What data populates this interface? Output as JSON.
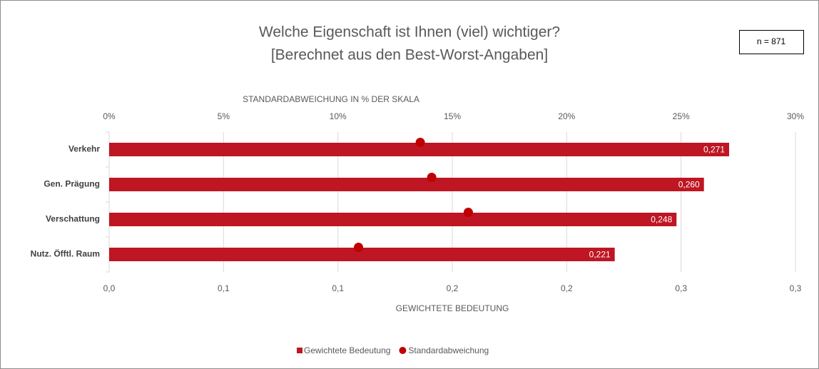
{
  "chart_data": {
    "type": "bar",
    "orientation": "horizontal",
    "title": "Welche Eigenschaft ist Ihnen (viel) wichtiger?",
    "subtitle": "[Berechnet aus den Best-Worst-Angaben]",
    "annotation": "n = 871",
    "xlabel": "GEWICHTETE BEDEUTUNG",
    "x2label": "STANDARDABWEICHUNG IN % DER SKALA",
    "categories": [
      "Verkehr",
      "Gen. Prägung",
      "Verschattung",
      "Nutz. Öfftl. Raum"
    ],
    "series": [
      {
        "name": "Gewichtete Bedeutung",
        "type": "bar",
        "color": "#be1622",
        "values": [
          0.271,
          0.26,
          0.248,
          0.221
        ],
        "value_labels": [
          "0,271",
          "0,260",
          "0,248",
          "0,221"
        ]
      },
      {
        "name": "Standardabweichung",
        "type": "scatter",
        "axis": "x2",
        "color": "#c00000",
        "values": [
          13.6,
          14.1,
          15.7,
          10.9
        ]
      }
    ],
    "xlim": [
      0,
      0.3
    ],
    "xticks": [
      {
        "value": 0,
        "label": "0,0"
      },
      {
        "value": 0.05,
        "label": "0,1"
      },
      {
        "value": 0.1,
        "label": "0,1"
      },
      {
        "value": 0.15,
        "label": "0,2"
      },
      {
        "value": 0.2,
        "label": "0,2"
      },
      {
        "value": 0.25,
        "label": "0,3"
      },
      {
        "value": 0.3,
        "label": "0,3"
      }
    ],
    "x2lim": [
      0,
      30
    ],
    "x2ticks": [
      {
        "value": 0,
        "label": "0%"
      },
      {
        "value": 5,
        "label": "5%"
      },
      {
        "value": 10,
        "label": "10%"
      },
      {
        "value": 15,
        "label": "15%"
      },
      {
        "value": 20,
        "label": "20%"
      },
      {
        "value": 25,
        "label": "25%"
      },
      {
        "value": 30,
        "label": "30%"
      }
    ],
    "grid": true,
    "legend": "bottom"
  }
}
